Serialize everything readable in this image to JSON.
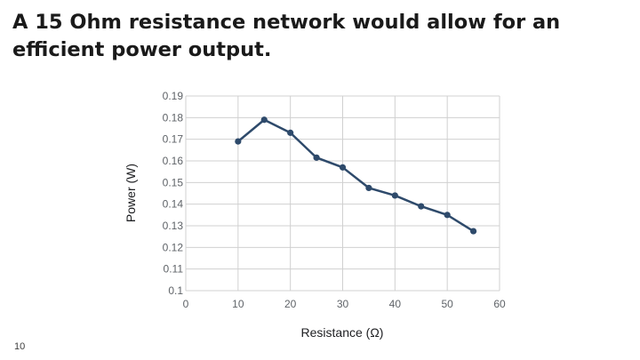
{
  "slide": {
    "title": "A 15 Ohm resistance network would allow for an efficient power output.",
    "page_number": "10"
  },
  "chart_data": {
    "type": "line",
    "xlabel": "Resistance (Ω)",
    "ylabel": "Power (W)",
    "xlim": [
      0,
      60
    ],
    "ylim": [
      0.1,
      0.19
    ],
    "x_ticks": [
      0,
      10,
      20,
      30,
      40,
      50,
      60
    ],
    "y_ticks": [
      0.1,
      0.11,
      0.12,
      0.13,
      0.14,
      0.15,
      0.16,
      0.17,
      0.18,
      0.19
    ],
    "grid": true,
    "series": [
      {
        "color": "#2e4a6b",
        "x": [
          10,
          15,
          20,
          25,
          30,
          35,
          40,
          45,
          50,
          55
        ],
        "y": [
          0.169,
          0.179,
          0.173,
          0.1615,
          0.157,
          0.1475,
          0.144,
          0.139,
          0.135,
          0.1275
        ]
      }
    ]
  }
}
